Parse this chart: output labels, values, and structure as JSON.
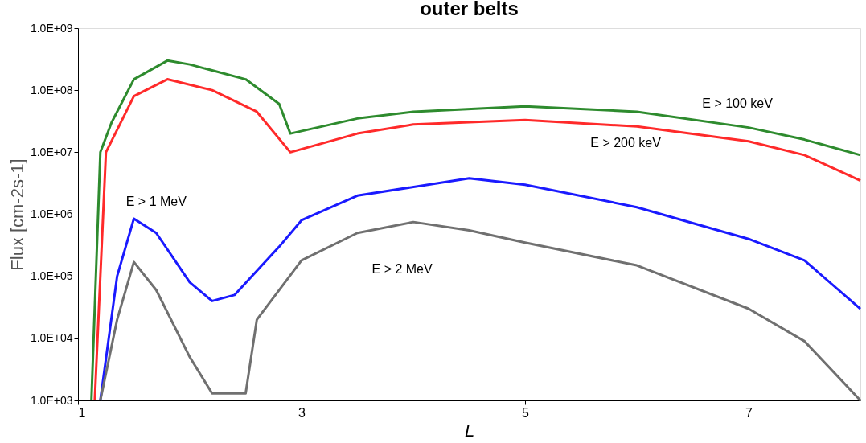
{
  "chart_data": {
    "type": "line",
    "title": "outer belts",
    "xlabel": "L",
    "ylabel": "Flux [cm-2s-1]",
    "log": "y",
    "xlim": [
      1,
      8
    ],
    "xticks": [
      1,
      3,
      5,
      7
    ],
    "ylim": [
      1000,
      1000000000
    ],
    "yticks": [
      {
        "value": 1000,
        "label": "1.0E+03"
      },
      {
        "value": 10000,
        "label": "1.0E+04"
      },
      {
        "value": 100000,
        "label": "1.0E+05"
      },
      {
        "value": 1000000,
        "label": "1.0E+06"
      },
      {
        "value": 10000000,
        "label": "1.0E+07"
      },
      {
        "value": 100000000,
        "label": "1.0E+08"
      },
      {
        "value": 1000000000,
        "label": "1.0E+09"
      }
    ],
    "grid": false,
    "series": [
      {
        "name": "E > 100 keV",
        "color": "#2e8b2e",
        "x": [
          1.12,
          1.2,
          1.3,
          1.5,
          1.8,
          2.0,
          2.5,
          2.8,
          2.9,
          3.5,
          4,
          5,
          6,
          7,
          7.5,
          8
        ],
        "values": [
          1000,
          10000000,
          30000000,
          150000000,
          300000000,
          260000000,
          150000000,
          60000000,
          20000000,
          35000000,
          45000000,
          55000000,
          45000000,
          25000000,
          16000000,
          9000000
        ]
      },
      {
        "name": "E > 200 keV",
        "color": "#ff2a2a",
        "x": [
          1.15,
          1.25,
          1.5,
          1.8,
          2.2,
          2.6,
          2.9,
          3.5,
          4,
          5,
          6,
          7,
          7.5,
          8
        ],
        "values": [
          1000,
          10000000,
          80000000,
          150000000,
          100000000,
          45000000,
          10000000,
          20000000,
          28000000,
          33000000,
          26000000,
          15000000,
          9000000,
          3500000
        ]
      },
      {
        "name": "E > 1 MeV",
        "color": "#1a1aff",
        "x": [
          1.2,
          1.35,
          1.5,
          1.7,
          2,
          2.2,
          2.4,
          2.8,
          3,
          3.5,
          4.5,
          5,
          6,
          7,
          7.5,
          8
        ],
        "values": [
          1000,
          100000,
          850000,
          500000,
          80000,
          40000,
          50000,
          300000,
          800000,
          2000000,
          3800000,
          3000000,
          1300000,
          400000,
          180000,
          30000
        ]
      },
      {
        "name": "E > 2 MeV",
        "color": "#707070",
        "x": [
          1.2,
          1.35,
          1.5,
          1.7,
          2,
          2.2,
          2.5,
          2.6,
          3,
          3.5,
          4,
          4.5,
          5,
          6,
          7,
          7.5,
          8
        ],
        "values": [
          1000,
          20000,
          170000,
          60000,
          5000,
          1300,
          1300,
          20000,
          180000,
          500000,
          750000,
          550000,
          350000,
          150000,
          30000,
          9000,
          1000
        ]
      }
    ]
  }
}
